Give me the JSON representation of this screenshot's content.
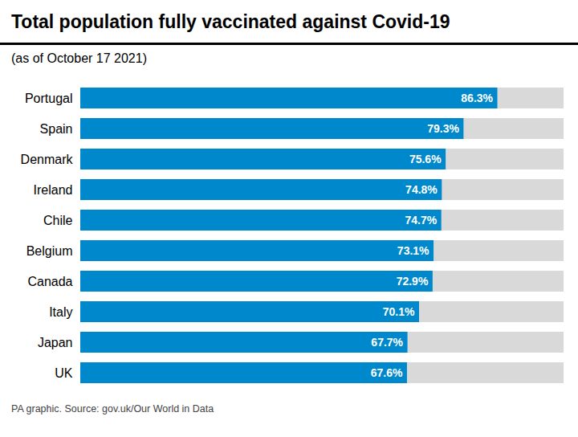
{
  "chart_data": {
    "type": "bar",
    "orientation": "horizontal",
    "title": "Total population fully vaccinated against Covid-19",
    "subtitle": "(as of October 17 2021)",
    "source": "PA graphic. Source: gov.uk/Our World in Data",
    "categories": [
      "Portugal",
      "Spain",
      "Denmark",
      "Ireland",
      "Chile",
      "Belgium",
      "Canada",
      "Italy",
      "Japan",
      "UK"
    ],
    "values": [
      86.3,
      79.3,
      75.6,
      74.8,
      74.7,
      73.1,
      72.9,
      70.1,
      67.7,
      67.6
    ],
    "value_labels": [
      "86.3%",
      "79.3%",
      "75.6%",
      "74.8%",
      "74.7%",
      "73.1%",
      "72.9%",
      "70.1%",
      "67.7%",
      "67.6%"
    ],
    "data_labels": true,
    "color": "#0088cc",
    "xlim": [
      0,
      100
    ],
    "tick_labels": "y",
    "grid": false
  }
}
